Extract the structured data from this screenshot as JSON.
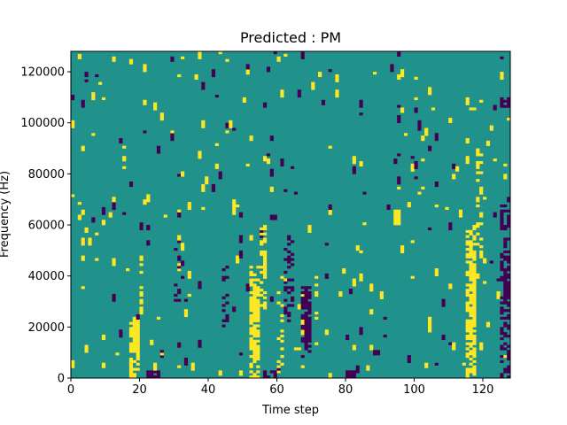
{
  "chart_data": {
    "type": "heatmap",
    "title": "Predicted : PM",
    "xlabel": "Time step",
    "ylabel": "Frequency (Hz)",
    "xlim": [
      0,
      128
    ],
    "ylim": [
      0,
      128000
    ],
    "xticks": [
      0,
      20,
      40,
      60,
      80,
      100,
      120
    ],
    "yticks": [
      0,
      20000,
      40000,
      60000,
      80000,
      100000,
      120000
    ],
    "n_time": 128,
    "n_freq": 128,
    "colormap": "viridis",
    "grid": false,
    "colors": {
      "low": "#440154",
      "mid": "#21918c",
      "high": "#fde725"
    },
    "value_levels": [
      "low",
      "mid",
      "high"
    ],
    "background_level": "mid",
    "high_cells": [
      [
        [
          17,
          20
        ],
        [
          0,
          24000
        ],
        0.6
      ],
      [
        [
          18,
          20
        ],
        [
          12000,
          24000
        ],
        0.9
      ],
      [
        [
          52,
          55
        ],
        [
          0,
          44000
        ],
        0.6
      ],
      [
        [
          53,
          55
        ],
        [
          24000,
          36000
        ],
        0.85
      ],
      [
        [
          55,
          57
        ],
        [
          28000,
          60000
        ],
        0.45
      ],
      [
        [
          115,
          118
        ],
        [
          0,
          60000
        ],
        0.55
      ],
      [
        [
          116,
          118
        ],
        [
          25000,
          45000
        ],
        0.85
      ],
      [
        [
          20,
          21
        ],
        [
          24000,
          48000
        ],
        0.5
      ],
      [
        [
          60,
          62
        ],
        [
          0,
          40000
        ],
        0.35
      ],
      [
        [
          71,
          72
        ],
        [
          20000,
          40000
        ],
        0.3
      ],
      [
        [
          94,
          96
        ],
        [
          60000,
          66000
        ],
        1.0
      ],
      [
        [
          118,
          120
        ],
        [
          50000,
          90000
        ],
        0.25
      ]
    ],
    "low_cells": [
      [
        [
          67,
          70
        ],
        [
          8000,
          36000
        ],
        0.55
      ],
      [
        [
          68,
          70
        ],
        [
          12000,
          34000
        ],
        0.8
      ],
      [
        [
          62,
          65
        ],
        [
          22000,
          58000
        ],
        0.35
      ],
      [
        [
          125,
          128
        ],
        [
          0,
          70000
        ],
        0.45
      ],
      [
        [
          126,
          128
        ],
        [
          28000,
          44000
        ],
        0.8
      ],
      [
        [
          22,
          26
        ],
        [
          0,
          3000
        ],
        0.9
      ],
      [
        [
          80,
          83
        ],
        [
          0,
          3000
        ],
        0.9
      ],
      [
        [
          125,
          128
        ],
        [
          106000,
          110000
        ],
        0.9
      ],
      [
        [
          56,
          60
        ],
        [
          0,
          3000
        ],
        0.4
      ],
      [
        [
          44,
          46
        ],
        [
          20000,
          45000
        ],
        0.25
      ],
      [
        [
          30,
          33
        ],
        [
          30000,
          55000
        ],
        0.2
      ]
    ],
    "random_density": 0.035,
    "seed": 20240517
  }
}
